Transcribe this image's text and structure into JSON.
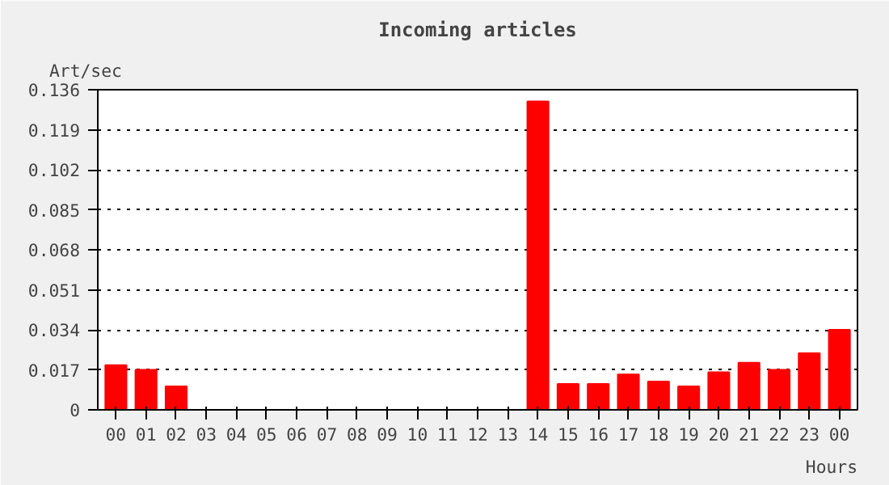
{
  "chart_data": {
    "type": "bar",
    "title": "Incoming articles",
    "ylabel": "Art/sec",
    "xlabel": "Hours",
    "categories": [
      "00",
      "01",
      "02",
      "03",
      "04",
      "05",
      "06",
      "07",
      "08",
      "09",
      "10",
      "11",
      "12",
      "13",
      "14",
      "15",
      "16",
      "17",
      "18",
      "19",
      "20",
      "21",
      "22",
      "23",
      "00"
    ],
    "values": [
      0.019,
      0.017,
      0.01,
      0,
      0,
      0,
      0,
      0,
      0,
      0,
      0,
      0,
      0,
      0,
      0.131,
      0.011,
      0.011,
      0.015,
      0.012,
      0.01,
      0.016,
      0.02,
      0.017,
      0.024,
      0.034
    ],
    "color": "#ff0000",
    "ylim": [
      0,
      0.136
    ],
    "yticks": [
      0,
      0.017,
      0.034,
      0.051,
      0.068,
      0.085,
      0.102,
      0.119,
      0.136
    ],
    "grid": "y",
    "line_style": "dotted"
  }
}
